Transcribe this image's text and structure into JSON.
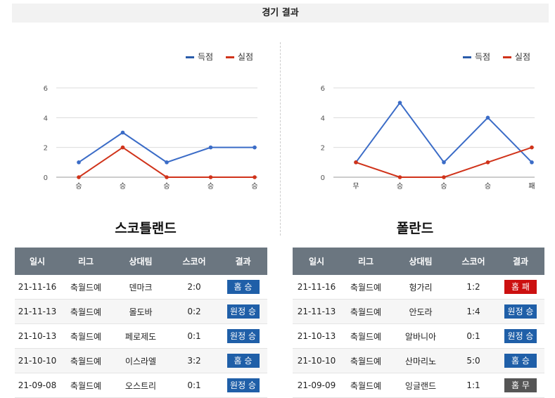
{
  "page": {
    "title": "경기 결과"
  },
  "legend": {
    "for_label": "득점",
    "against_label": "실점",
    "for_color": "#2a5caa",
    "against_color": "#d0331a"
  },
  "chart_data": [
    {
      "type": "line",
      "team": "스코틀랜드",
      "categories": [
        "승",
        "승",
        "승",
        "승",
        "승"
      ],
      "series": [
        {
          "name": "득점",
          "color": "#3b6cc7",
          "values": [
            1,
            3,
            1,
            2,
            2
          ]
        },
        {
          "name": "실점",
          "color": "#d0331a",
          "values": [
            0,
            2,
            0,
            0,
            0
          ]
        }
      ],
      "yticks": [
        0,
        2,
        4,
        6
      ],
      "ylim": [
        0,
        6
      ],
      "grid": true,
      "legend": "top-right"
    },
    {
      "type": "line",
      "team": "폴란드",
      "categories": [
        "무",
        "승",
        "승",
        "승",
        "패"
      ],
      "series": [
        {
          "name": "득점",
          "color": "#3b6cc7",
          "values": [
            1,
            5,
            1,
            4,
            1
          ]
        },
        {
          "name": "실점",
          "color": "#d0331a",
          "values": [
            1,
            0,
            0,
            1,
            2
          ]
        }
      ],
      "yticks": [
        0,
        2,
        4,
        6
      ],
      "ylim": [
        0,
        6
      ],
      "grid": true,
      "legend": "top-right"
    }
  ],
  "table_headers": [
    "일시",
    "리그",
    "상대팀",
    "스코어",
    "결과"
  ],
  "teams": [
    {
      "name": "스코틀랜드",
      "rows": [
        {
          "date": "21-11-16",
          "league": "축월드예",
          "opponent": "덴마크",
          "score": "2:0",
          "result": "홈 승",
          "kind": "win"
        },
        {
          "date": "21-11-13",
          "league": "축월드예",
          "opponent": "몰도바",
          "score": "0:2",
          "result": "원정 승",
          "kind": "win"
        },
        {
          "date": "21-10-13",
          "league": "축월드예",
          "opponent": "페로제도",
          "score": "0:1",
          "result": "원정 승",
          "kind": "win"
        },
        {
          "date": "21-10-10",
          "league": "축월드예",
          "opponent": "이스라엘",
          "score": "3:2",
          "result": "홈 승",
          "kind": "win"
        },
        {
          "date": "21-09-08",
          "league": "축월드예",
          "opponent": "오스트리",
          "score": "0:1",
          "result": "원정 승",
          "kind": "win"
        }
      ]
    },
    {
      "name": "폴란드",
      "rows": [
        {
          "date": "21-11-16",
          "league": "축월드예",
          "opponent": "헝가리",
          "score": "1:2",
          "result": "홈 패",
          "kind": "loss"
        },
        {
          "date": "21-11-13",
          "league": "축월드예",
          "opponent": "안도라",
          "score": "1:4",
          "result": "원정 승",
          "kind": "win"
        },
        {
          "date": "21-10-13",
          "league": "축월드예",
          "opponent": "알바니아",
          "score": "0:1",
          "result": "원정 승",
          "kind": "win"
        },
        {
          "date": "21-10-10",
          "league": "축월드예",
          "opponent": "산마리노",
          "score": "5:0",
          "result": "홈 승",
          "kind": "win"
        },
        {
          "date": "21-09-09",
          "league": "축월드예",
          "opponent": "잉글랜드",
          "score": "1:1",
          "result": "홈 무",
          "kind": "draw"
        }
      ]
    }
  ]
}
